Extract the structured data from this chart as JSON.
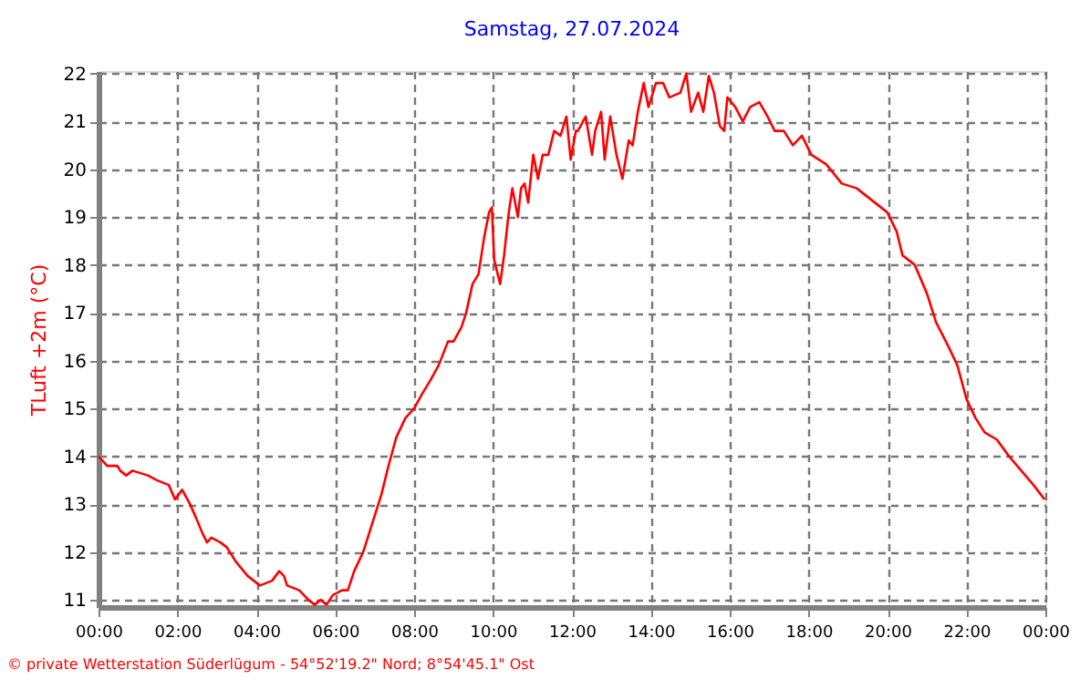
{
  "chart_data": {
    "type": "line",
    "title": "Samstag, 27.07.2024",
    "ylabel": "TLuft +2m (°C)",
    "x": [
      0,
      0.22,
      0.48,
      0.55,
      0.7,
      0.86,
      1.25,
      1.48,
      1.78,
      1.94,
      2.12,
      2.32,
      2.48,
      2.63,
      2.75,
      2.86,
      3.09,
      3.25,
      3.48,
      3.78,
      4.09,
      4.4,
      4.58,
      4.7,
      4.78,
      5.09,
      5.32,
      5.48,
      5.63,
      5.78,
      5.94,
      6.17,
      6.32,
      6.48,
      6.71,
      6.94,
      7.17,
      7.35,
      7.55,
      7.78,
      8.0,
      8.2,
      8.42,
      8.62,
      8.86,
      9.0,
      9.2,
      9.32,
      9.48,
      9.63,
      9.78,
      9.9,
      9.97,
      10.03,
      10.18,
      10.28,
      10.4,
      10.49,
      10.63,
      10.71,
      10.8,
      10.89,
      11.02,
      11.14,
      11.26,
      11.4,
      11.55,
      11.71,
      11.86,
      11.97,
      12.1,
      12.15,
      12.35,
      12.51,
      12.59,
      12.74,
      12.83,
      12.97,
      13.13,
      13.28,
      13.44,
      13.54,
      13.67,
      13.82,
      13.94,
      14.13,
      14.31,
      14.47,
      14.75,
      14.9,
      15.02,
      15.2,
      15.33,
      15.47,
      15.6,
      15.75,
      15.86,
      15.94,
      16.14,
      16.33,
      16.52,
      16.75,
      16.96,
      17.14,
      17.37,
      17.6,
      17.83,
      18.07,
      18.45,
      18.84,
      19.22,
      19.68,
      19.99,
      20.23,
      20.38,
      20.69,
      21.0,
      21.23,
      21.54,
      21.77,
      22.0,
      22.23,
      22.46,
      22.77,
      23.08,
      23.39,
      23.7,
      23.98
    ],
    "series": [
      {
        "color": "#ff0000",
        "values": [
          14.0,
          13.8,
          13.8,
          13.7,
          13.6,
          13.7,
          13.6,
          13.5,
          13.4,
          13.1,
          13.3,
          13.0,
          12.7,
          12.4,
          12.2,
          12.3,
          12.2,
          12.1,
          11.8,
          11.5,
          11.3,
          11.4,
          11.6,
          11.5,
          11.3,
          11.2,
          11.0,
          10.9,
          11.0,
          10.9,
          11.1,
          11.2,
          11.2,
          11.6,
          12.0,
          12.6,
          13.2,
          13.8,
          14.4,
          14.8,
          15.0,
          15.3,
          15.6,
          15.9,
          16.4,
          16.4,
          16.7,
          17.0,
          17.6,
          17.8,
          18.6,
          19.1,
          19.2,
          18.1,
          17.6,
          18.2,
          19.1,
          19.6,
          19.0,
          19.6,
          19.7,
          19.3,
          20.3,
          19.8,
          20.3,
          20.3,
          20.8,
          20.7,
          21.1,
          20.2,
          20.8,
          20.8,
          21.1,
          20.3,
          20.8,
          21.2,
          20.2,
          21.1,
          20.3,
          19.8,
          20.6,
          20.5,
          21.2,
          21.8,
          21.3,
          21.8,
          21.8,
          21.5,
          21.6,
          22.0,
          21.2,
          21.6,
          21.2,
          21.95,
          21.6,
          20.9,
          20.8,
          21.5,
          21.3,
          21.0,
          21.3,
          21.4,
          21.1,
          20.8,
          20.8,
          20.5,
          20.7,
          20.3,
          20.1,
          19.7,
          19.6,
          19.3,
          19.1,
          18.7,
          18.2,
          18.0,
          17.4,
          16.8,
          16.3,
          15.9,
          15.2,
          14.8,
          14.5,
          14.35,
          14.0,
          13.7,
          13.4,
          13.1
        ]
      }
    ],
    "xlim": [
      0,
      24
    ],
    "ylim": [
      10.85,
      22.05
    ],
    "xticks": [
      {
        "value": 0,
        "label": "00:00"
      },
      {
        "value": 2,
        "label": "02:00"
      },
      {
        "value": 4,
        "label": "04:00"
      },
      {
        "value": 6,
        "label": "06:00"
      },
      {
        "value": 8,
        "label": "08:00"
      },
      {
        "value": 10,
        "label": "10:00"
      },
      {
        "value": 12,
        "label": "12:00"
      },
      {
        "value": 14,
        "label": "14:00"
      },
      {
        "value": 16,
        "label": "16:00"
      },
      {
        "value": 18,
        "label": "18:00"
      },
      {
        "value": 20,
        "label": "20:00"
      },
      {
        "value": 22,
        "label": "22:00"
      },
      {
        "value": 24,
        "label": "00:00"
      }
    ],
    "yticks": [
      11,
      12,
      13,
      14,
      15,
      16,
      17,
      18,
      19,
      20,
      21,
      22
    ],
    "grid": true,
    "annotations": [
      "© private Wetterstation Süderlügum - 54°52'19.2\" Nord; 8°54'45.1\" Ost"
    ]
  }
}
